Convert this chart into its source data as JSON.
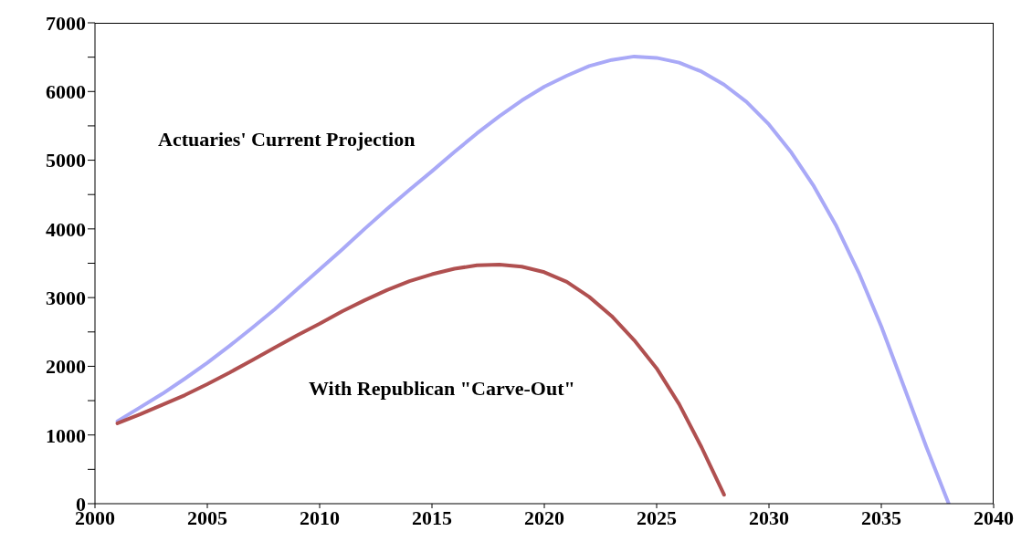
{
  "chart_data": {
    "type": "line",
    "x": [
      2001,
      2002,
      2003,
      2004,
      2005,
      2006,
      2007,
      2008,
      2009,
      2010,
      2011,
      2012,
      2013,
      2014,
      2015,
      2016,
      2017,
      2018,
      2019,
      2020,
      2021,
      2022,
      2023,
      2024,
      2025,
      2026,
      2027,
      2028,
      2029,
      2030,
      2031,
      2032,
      2033,
      2034,
      2035,
      2036,
      2037,
      2038
    ],
    "series": [
      {
        "name": "Actuaries' Current Projection",
        "color": "#a9a9f7",
        "values": [
          1200,
          1400,
          1600,
          1820,
          2050,
          2300,
          2560,
          2830,
          3120,
          3410,
          3700,
          4000,
          4290,
          4570,
          4840,
          5120,
          5390,
          5640,
          5870,
          6070,
          6230,
          6370,
          6460,
          6510,
          6490,
          6420,
          6290,
          6100,
          5850,
          5520,
          5110,
          4620,
          4040,
          3360,
          2580,
          1710,
          830,
          0
        ]
      },
      {
        "name": "With Republican \"Carve-Out\"",
        "color": "#b05050",
        "values": [
          1170,
          1300,
          1440,
          1580,
          1740,
          1910,
          2090,
          2270,
          2450,
          2620,
          2800,
          2960,
          3110,
          3240,
          3340,
          3420,
          3470,
          3480,
          3450,
          3370,
          3230,
          3010,
          2730,
          2380,
          1970,
          1450,
          820,
          130,
          null,
          null,
          null,
          null,
          null,
          null,
          null,
          null,
          null,
          null
        ]
      }
    ],
    "xlim": [
      2000,
      2040
    ],
    "xticks": [
      2000,
      2005,
      2010,
      2015,
      2020,
      2025,
      2030,
      2035,
      2040
    ],
    "ylim": [
      0,
      7000
    ],
    "yticks": [
      0,
      {
        "value": 500,
        "label": null
      },
      1000,
      {
        "value": 1500,
        "label": null
      },
      2000,
      {
        "value": 2500,
        "label": null
      },
      3000,
      {
        "value": 3500,
        "label": null
      },
      4000,
      {
        "value": 4500,
        "label": null
      },
      5000,
      {
        "value": 5500,
        "label": null
      },
      6000,
      {
        "value": 6500,
        "label": null
      },
      7000
    ],
    "grid": false,
    "legend": false,
    "marker": "none",
    "line_style": "solid"
  }
}
